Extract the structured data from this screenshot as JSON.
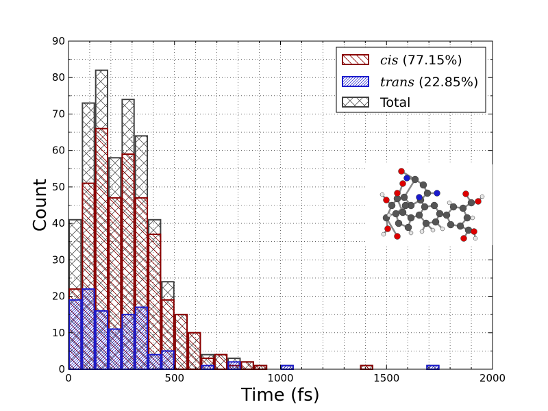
{
  "chart_data": {
    "type": "bar",
    "xlabel": "Time (fs)",
    "ylabel": "Count",
    "xlim": [
      0,
      2000
    ],
    "ylim": [
      0,
      90
    ],
    "xticks": [
      "0",
      "500",
      "1000",
      "1500",
      "2000"
    ],
    "yticks": [
      "0",
      "10",
      "20",
      "30",
      "40",
      "50",
      "60",
      "70",
      "80",
      "90"
    ],
    "grid": true,
    "grid_style": "dotted",
    "minor_ticks": true,
    "legend_position": "top-right",
    "bin_width": 62.5,
    "bin_start": 0,
    "series": [
      {
        "name": "cis",
        "legend_prefix": "cis",
        "legend_suffix": " (77.15%)",
        "color": "#8b0000",
        "hatch": "backslash",
        "values": [
          22,
          51,
          66,
          47,
          59,
          47,
          37,
          19,
          15,
          10,
          3,
          4,
          1,
          2,
          1,
          0,
          0,
          0,
          0,
          0,
          0,
          0,
          1,
          0,
          0,
          0,
          0,
          0,
          0,
          0,
          0,
          0
        ]
      },
      {
        "name": "trans",
        "legend_prefix": "trans",
        "legend_suffix": " (22.85%)",
        "color": "#1a1acc",
        "hatch": "slash-dense",
        "values": [
          19,
          22,
          16,
          11,
          15,
          17,
          4,
          5,
          0,
          0,
          1,
          0,
          2,
          0,
          0,
          0,
          1,
          0,
          0,
          0,
          0,
          0,
          0,
          0,
          0,
          0,
          0,
          1,
          0,
          0,
          0,
          0
        ]
      },
      {
        "name": "Total",
        "legend_prefix": "Total",
        "legend_suffix": "",
        "color": "#404040",
        "hatch": "cross",
        "values": [
          41,
          73,
          82,
          58,
          74,
          64,
          41,
          24,
          15,
          10,
          4,
          4,
          3,
          2,
          1,
          0,
          1,
          0,
          0,
          0,
          0,
          0,
          1,
          0,
          0,
          0,
          0,
          1,
          0,
          0,
          0,
          0
        ]
      }
    ]
  },
  "inset": {
    "description": "ball-and-stick molecule structure",
    "atom_colors": {
      "carbon": "#555555",
      "oxygen": "#dd0000",
      "nitrogen": "#1a1acc",
      "hydrogen": "#e6e6e6"
    }
  }
}
